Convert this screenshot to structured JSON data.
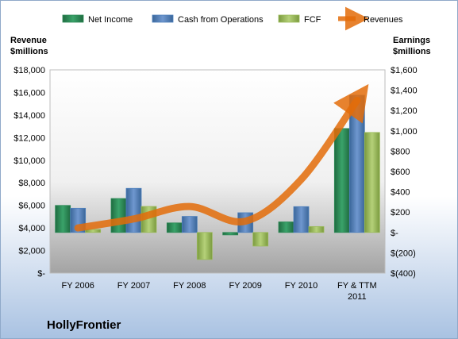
{
  "chart_data": {
    "type": "bar",
    "company": "HollyFrontier",
    "categories": [
      [
        "FY 2006"
      ],
      [
        "FY 2007"
      ],
      [
        "FY 2008"
      ],
      [
        "FY 2009"
      ],
      [
        "FY 2010"
      ],
      [
        "FY & TTM",
        "2011"
      ]
    ],
    "left_axis": {
      "title": [
        "Revenue",
        "$millions"
      ],
      "ylim": [
        0,
        18000
      ],
      "ticks": [
        0,
        2000,
        4000,
        6000,
        8000,
        10000,
        12000,
        14000,
        16000,
        18000
      ],
      "tick_labels": [
        "$-",
        "$2,000",
        "$4,000",
        "$6,000",
        "$8,000",
        "$10,000",
        "$12,000",
        "$14,000",
        "$16,000",
        "$18,000"
      ]
    },
    "right_axis": {
      "title": [
        "Earnings",
        "$millions"
      ],
      "ylim": [
        -400,
        1600
      ],
      "ticks": [
        -400,
        -200,
        0,
        200,
        400,
        600,
        800,
        1000,
        1200,
        1400,
        1600
      ],
      "tick_labels": [
        "$(400)",
        "$(200)",
        "$-",
        "$200",
        "$400",
        "$600",
        "$800",
        "$1,000",
        "$1,200",
        "$1,400",
        "$1,600"
      ]
    },
    "series": [
      {
        "name": "Net Income",
        "type": "bar",
        "axis": "right",
        "color": "#2e8b57",
        "values": [
          266,
          334,
          94,
          -24,
          104,
          1023
        ]
      },
      {
        "name": "Cash from Operations",
        "type": "bar",
        "axis": "right",
        "color": "#4f81bd",
        "values": [
          238,
          434,
          158,
          194,
          254,
          1350
        ]
      },
      {
        "name": "FCF",
        "type": "bar",
        "axis": "right",
        "color": "#9bbb59",
        "values": [
          30,
          256,
          -266,
          -134,
          58,
          984
        ]
      },
      {
        "name": "Revenues",
        "type": "line",
        "axis": "left",
        "color": "#e36c09",
        "values": [
          4000,
          4800,
          5900,
          4600,
          8300,
          15300
        ]
      }
    ],
    "legend_position": "top",
    "grid": false
  }
}
